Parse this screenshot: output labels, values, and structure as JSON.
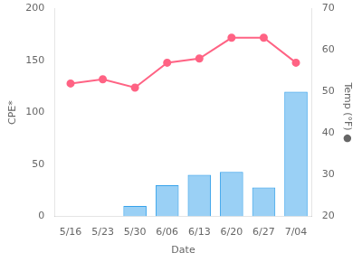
{
  "chart_data": {
    "type": "bar",
    "categories": [
      "5/16",
      "5/23",
      "5/30",
      "6/06",
      "6/13",
      "6/20",
      "6/27",
      "7/04"
    ],
    "xlabel": "Date",
    "ylabel": "CPE*",
    "y2label": "Temp (°F) ●",
    "series": [
      {
        "type": "bar",
        "values": [
          0,
          0,
          10,
          30,
          40,
          43,
          28,
          120
        ]
      },
      {
        "type": "line",
        "axis": "y2",
        "marker": "circle",
        "line_style": "solid",
        "values": [
          52,
          53,
          51,
          57,
          58,
          63,
          63,
          57
        ]
      }
    ],
    "ylim": [
      0,
      200
    ],
    "yticks": [
      0,
      50,
      100,
      150,
      200
    ],
    "y2lim": [
      20,
      70
    ],
    "y2ticks": [
      20,
      30,
      40,
      50,
      60,
      70
    ],
    "grid": false
  }
}
